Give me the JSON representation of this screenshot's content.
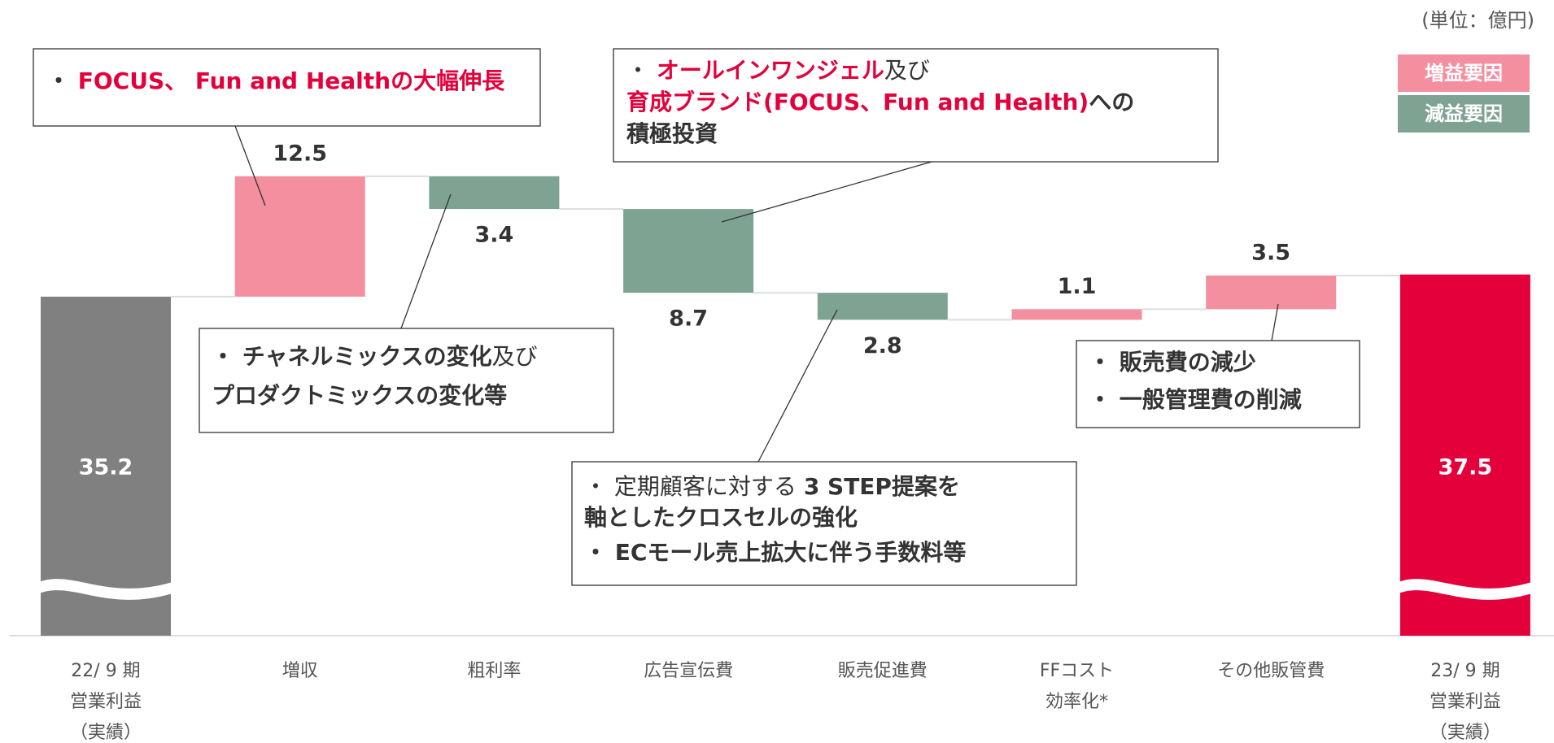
{
  "chart_data": {
    "type": "waterfall",
    "unit": "(単位：億円)",
    "categories": [
      [
        "22/ 9 期",
        "営業利益",
        "（実績）"
      ],
      [
        "増収"
      ],
      [
        "粗利率"
      ],
      [
        "広告宣伝費"
      ],
      [
        "販売促進費"
      ],
      [
        "FFコスト",
        "効率化*"
      ],
      [
        "その他販管費"
      ],
      [
        "23/ 9 期",
        "営業利益",
        "（実績）"
      ]
    ],
    "values": [
      35.2,
      12.5,
      -3.4,
      -8.7,
      -2.8,
      1.1,
      3.5,
      37.5
    ],
    "value_labels": [
      "35.2",
      "12.5",
      "3.4",
      "8.7",
      "2.8",
      "1.1",
      "3.5",
      "37.5"
    ],
    "totals": [
      true,
      false,
      false,
      false,
      false,
      false,
      false,
      true
    ],
    "total_colors": [
      "#808080",
      "#e4003a"
    ],
    "series": [
      {
        "name": "増益要因",
        "color": "#f48fa0"
      },
      {
        "name": "減益要因",
        "color": "#7fa392"
      }
    ],
    "ylim": [
      0,
      66
    ],
    "annotations": [
      {
        "lines": [
          [
            {
              "text": "・ ",
              "style": "bold"
            },
            {
              "text": "FOCUS、 Fun and Healthの大幅伸長",
              "style": "red"
            }
          ]
        ]
      },
      {
        "lines": [
          [
            {
              "text": "・ ",
              "style": "normal"
            },
            {
              "text": "オールインワンジェル",
              "style": "red"
            },
            {
              "text": "及び",
              "style": "normal"
            }
          ],
          [
            {
              "text": "育成ブランド(FOCUS、Fun and Health)",
              "style": "red"
            },
            {
              "text": "への",
              "style": "bold"
            }
          ],
          [
            {
              "text": "積極投資",
              "style": "bold"
            }
          ]
        ]
      },
      {
        "lines": [
          [
            {
              "text": "・ ",
              "style": "bold"
            },
            {
              "text": "チャネルミックスの変化",
              "style": "bold"
            },
            {
              "text": "及び",
              "style": "normal"
            }
          ],
          [
            {
              "text": "プロダクトミックスの変化等",
              "style": "bold"
            }
          ]
        ]
      },
      {
        "lines": [
          [
            {
              "text": "・ 定期顧客に対する ",
              "style": "normal"
            },
            {
              "text": "3 STEP提案を",
              "style": "bold"
            }
          ],
          [
            {
              "text": "軸としたクロスセルの強化",
              "style": "bold"
            }
          ],
          [
            {
              "text": "・ ECモール売上拡大に伴う手数料等",
              "style": "bold"
            }
          ]
        ]
      },
      {
        "lines": [
          [
            {
              "text": "・ 販売費の減少",
              "style": "bold"
            }
          ],
          [
            {
              "text": "・ 一般管理費の削減",
              "style": "bold"
            }
          ]
        ]
      }
    ]
  }
}
